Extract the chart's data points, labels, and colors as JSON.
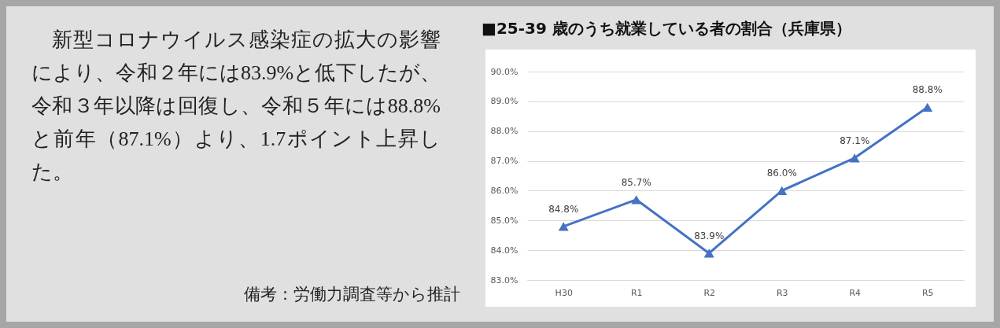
{
  "chart_data": {
    "type": "line",
    "title": "■25-39 歳のうち就業している者の割合（兵庫県）",
    "annotations": [
      "新型コロナウイルス感染症の拡大の影響により、令和２年には83.9%と低下したが、令和３年以降は回復し、令和５年には88.8%と前年（87.1%）より、1.7ポイント上昇した。",
      "備考：労働力調査等から推計"
    ],
    "categories": [
      "H30",
      "R1",
      "R2",
      "R3",
      "R4",
      "R5"
    ],
    "series": [
      {
        "color": "#4472c4",
        "values": [
          84.8,
          85.7,
          83.9,
          86.0,
          87.1,
          88.8
        ],
        "value_labels": [
          "84.8%",
          "85.7%",
          "83.9%",
          "86.0%",
          "87.1%",
          "88.8%"
        ]
      }
    ],
    "ylim": [
      83,
      90
    ],
    "yticks": [
      {
        "value": 83,
        "label": "83.0%"
      },
      {
        "value": 84,
        "label": "84.0%"
      },
      {
        "value": 85,
        "label": "85.0%"
      },
      {
        "value": 86,
        "label": "86.0%"
      },
      {
        "value": 87,
        "label": "87.0%"
      },
      {
        "value": 88,
        "label": "88.0%"
      },
      {
        "value": 89,
        "label": "89.0%"
      },
      {
        "value": 90,
        "label": "90.0%"
      }
    ],
    "grid": "y",
    "marker": "triangle",
    "line_style": "solid"
  }
}
